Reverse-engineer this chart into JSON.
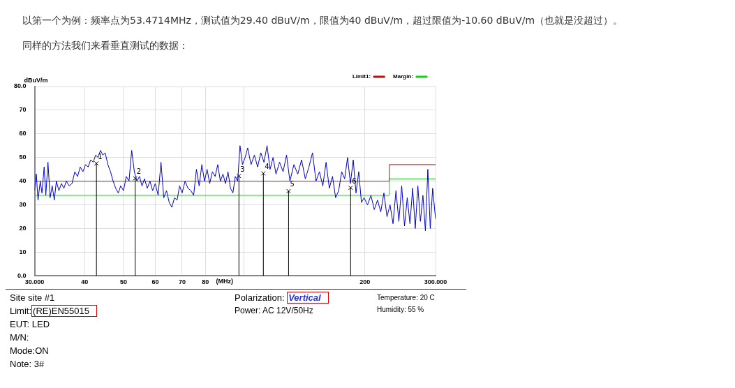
{
  "chart_data": {
    "type": "line",
    "ylabel": "dBuV/m",
    "xlabel": "(MHz)",
    "log": "x",
    "grid": true,
    "legend": "top right",
    "xlim": [
      30,
      300
    ],
    "ylim": [
      0,
      80
    ],
    "xticks": [
      {
        "value": 30,
        "label": "30.000"
      },
      40,
      50,
      60,
      70,
      80,
      {
        "value": 100,
        "label": null
      },
      200,
      {
        "value": 300,
        "label": "300.000"
      }
    ],
    "yticks": [
      {
        "value": 0,
        "label": "0.0"
      },
      10,
      20,
      30,
      40,
      50,
      60,
      70,
      {
        "value": 80,
        "label": "80.0"
      }
    ],
    "series": [
      {
        "color": "#0000cc",
        "x": [
          30,
          30.3,
          30.6,
          31,
          31.3,
          31.7,
          32,
          32.4,
          32.8,
          33.2,
          33.6,
          34,
          34.5,
          35,
          35.5,
          36,
          36.6,
          37.2,
          37.8,
          38.4,
          39,
          39.6,
          40.2,
          40.8,
          41.4,
          42,
          42.6,
          43.2,
          43.8,
          44.4,
          45,
          45.7,
          46.4,
          47.1,
          47.8,
          48.5,
          49.2,
          50,
          50.8,
          51.6,
          52.4,
          53.2,
          54,
          54.8,
          55.6,
          56.4,
          57.3,
          58.2,
          59.1,
          60,
          61,
          62,
          63,
          64,
          65,
          66,
          67,
          68,
          69,
          70,
          71.2,
          72.4,
          73.6,
          74.8,
          76,
          77.2,
          78.4,
          79.6,
          80.8,
          82,
          83.3,
          84.6,
          85.9,
          87.2,
          88.5,
          89.8,
          91.1,
          92.4,
          93.7,
          95,
          96.3,
          97.6,
          99,
          100.5,
          102,
          104,
          106,
          108,
          110,
          112,
          114,
          116,
          118,
          120,
          122.5,
          125,
          127.5,
          130,
          133,
          136,
          139,
          142,
          145,
          148,
          151,
          154,
          157,
          160,
          163,
          166,
          169,
          172,
          175,
          178,
          181,
          184,
          187,
          190,
          193,
          196,
          199,
          203,
          207,
          211,
          215,
          219,
          223,
          227,
          231,
          235,
          239,
          243,
          247,
          251,
          255,
          259,
          263,
          267,
          271,
          275,
          279,
          283,
          287,
          291,
          295,
          300
        ],
        "values": [
          36,
          43,
          32,
          40,
          35,
          46,
          34,
          48,
          33,
          38,
          32,
          40,
          36,
          39,
          37,
          40,
          38,
          39,
          44,
          42,
          46,
          44,
          47,
          46,
          49,
          48,
          51,
          50,
          53,
          51,
          52,
          47,
          44,
          40,
          37,
          35,
          38,
          36,
          42,
          40,
          53,
          44,
          40,
          42,
          38,
          41,
          37,
          40,
          36,
          39,
          34,
          48,
          33,
          36,
          31,
          29,
          33,
          32,
          38,
          35,
          40,
          37,
          36,
          34,
          45,
          38,
          47,
          40,
          45,
          39,
          44,
          42,
          47,
          40,
          43,
          39,
          44,
          37,
          35,
          42,
          40,
          55,
          47,
          50,
          54,
          47,
          51,
          46,
          52,
          48,
          55,
          45,
          50,
          43,
          48,
          44,
          51,
          40,
          47,
          43,
          49,
          41,
          46,
          52,
          40,
          44,
          38,
          48,
          37,
          42,
          33,
          36,
          44,
          41,
          50,
          39,
          49,
          35,
          44,
          31,
          33,
          30,
          34,
          28,
          32,
          27,
          35,
          25,
          30,
          22,
          36,
          23,
          38,
          21,
          33,
          22,
          37,
          20,
          38,
          23,
          34,
          19,
          45,
          20,
          37,
          24
        ]
      },
      {
        "name": "Limit1:",
        "color": "#e00000",
        "x": [
          30,
          230,
          230,
          300
        ],
        "values": [
          40,
          40,
          47,
          47
        ]
      },
      {
        "name": "Margin:",
        "color": "#00e000",
        "x": [
          30,
          230,
          230,
          300
        ],
        "values": [
          34,
          34,
          41,
          41
        ]
      },
      {
        "type": "lollipop",
        "marker": "cross",
        "color": "#000000",
        "x": [
          42.8,
          53.4714,
          97,
          111.6,
          129,
          184.2
        ],
        "values": [
          47.5,
          41.2,
          42.2,
          43.3,
          35.8,
          37.2
        ]
      }
    ],
    "annotations": [
      "以第一个为例：频率点为53.4714MHz，测试值为29.40 dBuV/m，限值为40 dBuV/m，超过限值为-10.60 dBuV/m（也就是没超过）。",
      "同样的方法我们来看垂直测试的数据：",
      "Site  site #1",
      "Limit:(RE)EN55015",
      "EUT:  LED",
      "M/N:",
      "Mode:ON",
      "Note:  3#",
      "Polarization: Vertical",
      "Power: AC 12V/50Hz",
      "Temperature: 20 C",
      "Humidity: 55 %",
      {
        "text": "1",
        "x": 42.8,
        "y": 47.5
      },
      {
        "text": "2",
        "x": 53.4714,
        "y": 41.2
      },
      {
        "text": "3",
        "x": 97,
        "y": 42.2
      },
      {
        "text": "4",
        "x": 111.6,
        "y": 43.3
      },
      {
        "text": "5",
        "x": 129,
        "y": 35.8
      },
      {
        "text": "6",
        "x": 184.2,
        "y": 37.2
      }
    ]
  }
}
